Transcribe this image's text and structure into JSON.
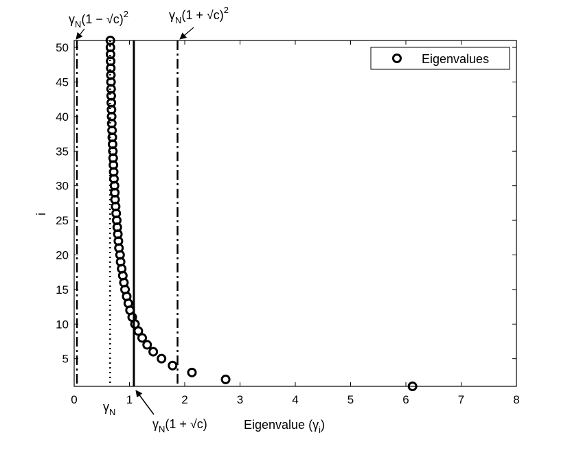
{
  "chart_data": {
    "type": "scatter",
    "xlabel_main": "Eigenvalue (γ",
    "xlabel_sub": "i",
    "xlabel_close": ")",
    "ylabel": "i",
    "xlim": [
      0,
      8
    ],
    "ylim": [
      1,
      51
    ],
    "xticks": [
      0,
      1,
      2,
      3,
      4,
      5,
      6,
      7,
      8
    ],
    "yticks": [
      5,
      10,
      15,
      20,
      25,
      30,
      35,
      40,
      45,
      50
    ],
    "grid": false,
    "legend": {
      "label": "Eigenvalues",
      "position": "top-right"
    },
    "series": [
      {
        "name": "Eigenvalues",
        "marker": "circle-open",
        "points": [
          {
            "x": 6.12,
            "y": 1
          },
          {
            "x": 2.74,
            "y": 2
          },
          {
            "x": 2.13,
            "y": 3
          },
          {
            "x": 1.78,
            "y": 4
          },
          {
            "x": 1.58,
            "y": 5
          },
          {
            "x": 1.43,
            "y": 6
          },
          {
            "x": 1.32,
            "y": 7
          },
          {
            "x": 1.23,
            "y": 8
          },
          {
            "x": 1.16,
            "y": 9
          },
          {
            "x": 1.1,
            "y": 10
          },
          {
            "x": 1.05,
            "y": 11
          },
          {
            "x": 1.01,
            "y": 12
          },
          {
            "x": 0.98,
            "y": 13
          },
          {
            "x": 0.95,
            "y": 14
          },
          {
            "x": 0.92,
            "y": 15
          },
          {
            "x": 0.9,
            "y": 16
          },
          {
            "x": 0.88,
            "y": 17
          },
          {
            "x": 0.86,
            "y": 18
          },
          {
            "x": 0.84,
            "y": 19
          },
          {
            "x": 0.83,
            "y": 20
          },
          {
            "x": 0.81,
            "y": 21
          },
          {
            "x": 0.8,
            "y": 22
          },
          {
            "x": 0.79,
            "y": 23
          },
          {
            "x": 0.78,
            "y": 24
          },
          {
            "x": 0.77,
            "y": 25
          },
          {
            "x": 0.76,
            "y": 26
          },
          {
            "x": 0.75,
            "y": 27
          },
          {
            "x": 0.74,
            "y": 28
          },
          {
            "x": 0.735,
            "y": 29
          },
          {
            "x": 0.73,
            "y": 30
          },
          {
            "x": 0.72,
            "y": 31
          },
          {
            "x": 0.715,
            "y": 32
          },
          {
            "x": 0.71,
            "y": 33
          },
          {
            "x": 0.705,
            "y": 34
          },
          {
            "x": 0.7,
            "y": 35
          },
          {
            "x": 0.695,
            "y": 36
          },
          {
            "x": 0.69,
            "y": 37
          },
          {
            "x": 0.685,
            "y": 38
          },
          {
            "x": 0.68,
            "y": 39
          },
          {
            "x": 0.678,
            "y": 40
          },
          {
            "x": 0.675,
            "y": 41
          },
          {
            "x": 0.672,
            "y": 42
          },
          {
            "x": 0.67,
            "y": 43
          },
          {
            "x": 0.668,
            "y": 44
          },
          {
            "x": 0.666,
            "y": 45
          },
          {
            "x": 0.664,
            "y": 46
          },
          {
            "x": 0.662,
            "y": 47
          },
          {
            "x": 0.66,
            "y": 48
          },
          {
            "x": 0.658,
            "y": 49
          },
          {
            "x": 0.656,
            "y": 50
          },
          {
            "x": 0.655,
            "y": 51
          }
        ]
      }
    ],
    "reference_lines": [
      {
        "id": "lower-edge",
        "x": 0.05,
        "style": "dashdot"
      },
      {
        "id": "gamma-n",
        "x": 0.65,
        "style": "dotted"
      },
      {
        "id": "one-plus-sqrtc",
        "x": 1.08,
        "style": "solid"
      },
      {
        "id": "upper-edge",
        "x": 1.87,
        "style": "dashdot"
      }
    ],
    "annotations": {
      "lower_edge": {
        "gamma": "γ",
        "sub": "N",
        "expr": "(1 − √c)",
        "sup": "2"
      },
      "upper_edge": {
        "gamma": "γ",
        "sub": "N",
        "expr": "(1 + √c)",
        "sup": "2"
      },
      "gamma_n": {
        "gamma": "γ",
        "sub": "N"
      },
      "one_plus_sqrtc": {
        "gamma": "γ",
        "sub": "N",
        "expr": "(1 + √c)"
      }
    }
  }
}
